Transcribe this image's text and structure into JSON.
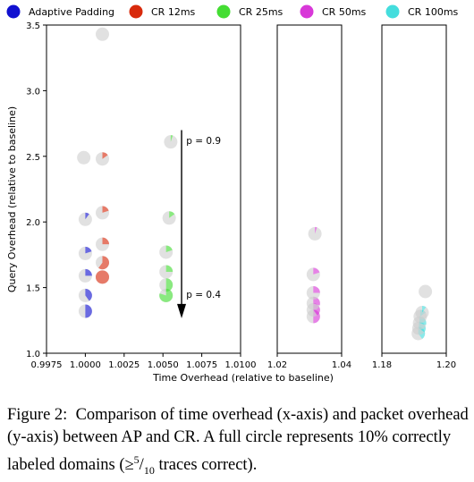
{
  "legend": [
    {
      "label": "Adaptive Padding",
      "color": "#1010d0"
    },
    {
      "label": "CR 12ms",
      "color": "#d82a0c"
    },
    {
      "label": "CR 25ms",
      "color": "#44dd33"
    },
    {
      "label": "CR 50ms",
      "color": "#d838d8"
    },
    {
      "label": "CR 100ms",
      "color": "#44dddd"
    }
  ],
  "caption": {
    "figure_label": "Figure 2:",
    "text_part1": "Comparison of time overhead (x-axis) and packet overhead (y-axis) between AP and CR. A full circle represents 10% correctly labeled domains (",
    "ge": "≥",
    "num": "5",
    "slash": "/",
    "den": "10",
    "text_part2": " traces correct)."
  },
  "chart_data": {
    "type": "scatter",
    "xlabel": "Time Overhead (relative to baseline)",
    "ylabel": "Query Overhead (relative to baseline)",
    "ylim": [
      1.0,
      3.5
    ],
    "yticks": [
      "1.0",
      "1.5",
      "2.0",
      "2.5",
      "3.0",
      "3.5"
    ],
    "grid": false,
    "legend_position": "top",
    "marker": "pie (filled fraction = share of correctly labeled domains)",
    "panels": [
      {
        "xlim": [
          0.9975,
          1.01
        ],
        "xticks": [
          {
            "value": 0.9975,
            "label": "0.9975"
          },
          {
            "value": 1.0,
            "label": "1.0000"
          },
          {
            "value": 1.0025,
            "label": "1.0025"
          },
          {
            "value": 1.005,
            "label": "1.0050"
          },
          {
            "value": 1.0075,
            "label": "1.0075"
          },
          {
            "value": 1.01,
            "label": "1.0100"
          }
        ],
        "annotations": [
          {
            "text": "p = 0.9",
            "x": 1.0065,
            "y": 2.62
          },
          {
            "text": "p = 0.4",
            "x": 1.0065,
            "y": 1.45
          }
        ],
        "arrow": {
          "from": [
            1.0062,
            2.7
          ],
          "to": [
            1.0062,
            1.28
          ]
        }
      },
      {
        "xlim": [
          1.02,
          1.04
        ],
        "xticks": [
          {
            "value": 1.02,
            "label": "1.02"
          },
          {
            "value": 1.04,
            "label": "1.04"
          }
        ]
      },
      {
        "xlim": [
          1.18,
          1.2
        ],
        "xticks": [
          {
            "value": 1.18,
            "label": "1.18"
          },
          {
            "value": 1.2,
            "label": "1.20"
          }
        ]
      }
    ],
    "series": [
      {
        "name": "Adaptive Padding",
        "panel": 0,
        "points": [
          {
            "x": 1.0,
            "y": 1.32,
            "fraction": 0.5
          },
          {
            "x": 1.0,
            "y": 1.44,
            "fraction": 0.4
          },
          {
            "x": 1.0,
            "y": 1.59,
            "fraction": 0.25
          },
          {
            "x": 1.0,
            "y": 1.76,
            "fraction": 0.2
          },
          {
            "x": 1.0,
            "y": 2.02,
            "fraction": 0.1
          },
          {
            "x": 0.9999,
            "y": 2.49,
            "fraction": 0.0
          }
        ]
      },
      {
        "name": "CR 12ms",
        "panel": 0,
        "points": [
          {
            "x": 1.0011,
            "y": 1.58,
            "fraction": 1.0
          },
          {
            "x": 1.0011,
            "y": 1.69,
            "fraction": 0.6
          },
          {
            "x": 1.0011,
            "y": 1.83,
            "fraction": 0.25
          },
          {
            "x": 1.0011,
            "y": 2.07,
            "fraction": 0.2
          },
          {
            "x": 1.0011,
            "y": 2.48,
            "fraction": 0.15
          },
          {
            "x": 1.0011,
            "y": 3.43,
            "fraction": 0.0
          }
        ]
      },
      {
        "name": "CR 25ms",
        "panel": 0,
        "points": [
          {
            "x": 1.0052,
            "y": 1.44,
            "fraction": 0.8
          },
          {
            "x": 1.0052,
            "y": 1.52,
            "fraction": 0.5
          },
          {
            "x": 1.0052,
            "y": 1.62,
            "fraction": 0.25
          },
          {
            "x": 1.0052,
            "y": 1.77,
            "fraction": 0.2
          },
          {
            "x": 1.0054,
            "y": 2.03,
            "fraction": 0.15
          },
          {
            "x": 1.0055,
            "y": 2.61,
            "fraction": 0.05
          }
        ]
      },
      {
        "name": "CR 50ms",
        "panel": 1,
        "points": [
          {
            "x": 1.0312,
            "y": 1.28,
            "fraction": 0.5
          },
          {
            "x": 1.0312,
            "y": 1.33,
            "fraction": 0.4
          },
          {
            "x": 1.0312,
            "y": 1.38,
            "fraction": 0.3
          },
          {
            "x": 1.0312,
            "y": 1.46,
            "fraction": 0.25
          },
          {
            "x": 1.0312,
            "y": 1.6,
            "fraction": 0.2
          },
          {
            "x": 1.0317,
            "y": 1.91,
            "fraction": 0.05
          }
        ]
      },
      {
        "name": "CR 100ms",
        "panel": 2,
        "points": [
          {
            "x": 1.1913,
            "y": 1.15,
            "fraction": 0.4
          },
          {
            "x": 1.1915,
            "y": 1.19,
            "fraction": 0.35
          },
          {
            "x": 1.1917,
            "y": 1.23,
            "fraction": 0.3
          },
          {
            "x": 1.1919,
            "y": 1.28,
            "fraction": 0.15
          },
          {
            "x": 1.1925,
            "y": 1.31,
            "fraction": 0.1
          },
          {
            "x": 1.1935,
            "y": 1.47,
            "fraction": 0.0
          }
        ]
      }
    ]
  }
}
